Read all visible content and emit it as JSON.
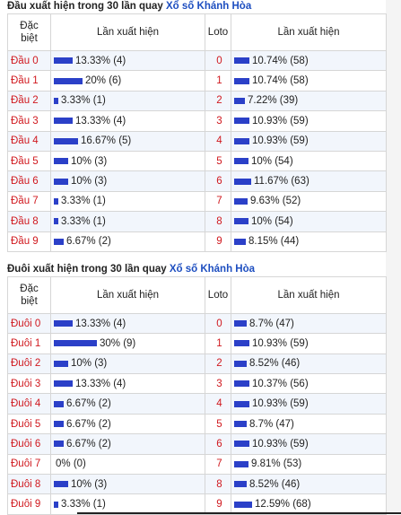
{
  "head_section": {
    "title_prefix": "Đầu xuất hiện trong 30 lần quay ",
    "title_link": "Xổ số Khánh Hòa",
    "col_dac_biet": "Đặc biệt",
    "col_lan_xuat_hien": "Lần xuất hiện",
    "col_loto": "Loto",
    "col_lan_xuat_hien_2": "Lần xuất hiện",
    "rows": [
      {
        "label": "Đầu 0",
        "pct_text": "13.33% (4)",
        "pct": 13.33,
        "loto": "0",
        "loto_text": "10.74% (58)",
        "loto_pct": 10.74
      },
      {
        "label": "Đầu 1",
        "pct_text": "20% (6)",
        "pct": 20,
        "loto": "1",
        "loto_text": "10.74% (58)",
        "loto_pct": 10.74
      },
      {
        "label": "Đầu 2",
        "pct_text": "3.33% (1)",
        "pct": 3.33,
        "loto": "2",
        "loto_text": "7.22% (39)",
        "loto_pct": 7.22
      },
      {
        "label": "Đầu 3",
        "pct_text": "13.33% (4)",
        "pct": 13.33,
        "loto": "3",
        "loto_text": "10.93% (59)",
        "loto_pct": 10.93
      },
      {
        "label": "Đầu 4",
        "pct_text": "16.67% (5)",
        "pct": 16.67,
        "loto": "4",
        "loto_text": "10.93% (59)",
        "loto_pct": 10.93
      },
      {
        "label": "Đầu 5",
        "pct_text": "10% (3)",
        "pct": 10,
        "loto": "5",
        "loto_text": "10% (54)",
        "loto_pct": 10
      },
      {
        "label": "Đầu 6",
        "pct_text": "10% (3)",
        "pct": 10,
        "loto": "6",
        "loto_text": "11.67% (63)",
        "loto_pct": 11.67
      },
      {
        "label": "Đầu 7",
        "pct_text": "3.33% (1)",
        "pct": 3.33,
        "loto": "7",
        "loto_text": "9.63% (52)",
        "loto_pct": 9.63
      },
      {
        "label": "Đầu 8",
        "pct_text": "3.33% (1)",
        "pct": 3.33,
        "loto": "8",
        "loto_text": "10% (54)",
        "loto_pct": 10
      },
      {
        "label": "Đầu 9",
        "pct_text": "6.67% (2)",
        "pct": 6.67,
        "loto": "9",
        "loto_text": "8.15% (44)",
        "loto_pct": 8.15
      }
    ]
  },
  "tail_section": {
    "title_prefix": "Đuôi xuất hiện trong 30 lần quay ",
    "title_link": "Xổ số Khánh Hòa",
    "col_dac_biet": "Đặc biệt",
    "col_lan_xuat_hien": "Lần xuất hiện",
    "col_loto": "Loto",
    "col_lan_xuat_hien_2": "Lần xuất hiện",
    "rows": [
      {
        "label": "Đuôi 0",
        "pct_text": "13.33% (4)",
        "pct": 13.33,
        "loto": "0",
        "loto_text": "8.7% (47)",
        "loto_pct": 8.7
      },
      {
        "label": "Đuôi 1",
        "pct_text": "30% (9)",
        "pct": 30,
        "loto": "1",
        "loto_text": "10.93% (59)",
        "loto_pct": 10.93
      },
      {
        "label": "Đuôi 2",
        "pct_text": "10% (3)",
        "pct": 10,
        "loto": "2",
        "loto_text": "8.52% (46)",
        "loto_pct": 8.52
      },
      {
        "label": "Đuôi 3",
        "pct_text": "13.33% (4)",
        "pct": 13.33,
        "loto": "3",
        "loto_text": "10.37% (56)",
        "loto_pct": 10.37
      },
      {
        "label": "Đuôi 4",
        "pct_text": "6.67% (2)",
        "pct": 6.67,
        "loto": "4",
        "loto_text": "10.93% (59)",
        "loto_pct": 10.93
      },
      {
        "label": "Đuôi 5",
        "pct_text": "6.67% (2)",
        "pct": 6.67,
        "loto": "5",
        "loto_text": "8.7% (47)",
        "loto_pct": 8.7
      },
      {
        "label": "Đuôi 6",
        "pct_text": "6.67% (2)",
        "pct": 6.67,
        "loto": "6",
        "loto_text": "10.93% (59)",
        "loto_pct": 10.93
      },
      {
        "label": "Đuôi 7",
        "pct_text": "0% (0)",
        "pct": 0,
        "loto": "7",
        "loto_text": "9.81% (53)",
        "loto_pct": 9.81
      },
      {
        "label": "Đuôi 8",
        "pct_text": "10% (3)",
        "pct": 10,
        "loto": "8",
        "loto_text": "8.52% (46)",
        "loto_pct": 8.52
      },
      {
        "label": "Đuôi 9",
        "pct_text": "3.33% (1)",
        "pct": 3.33,
        "loto": "9",
        "loto_text": "12.59% (68)",
        "loto_pct": 12.59
      }
    ]
  },
  "colors": {
    "bar": "#2b40c8",
    "label_red": "#d0181e",
    "link_blue": "#1d4ec0"
  }
}
